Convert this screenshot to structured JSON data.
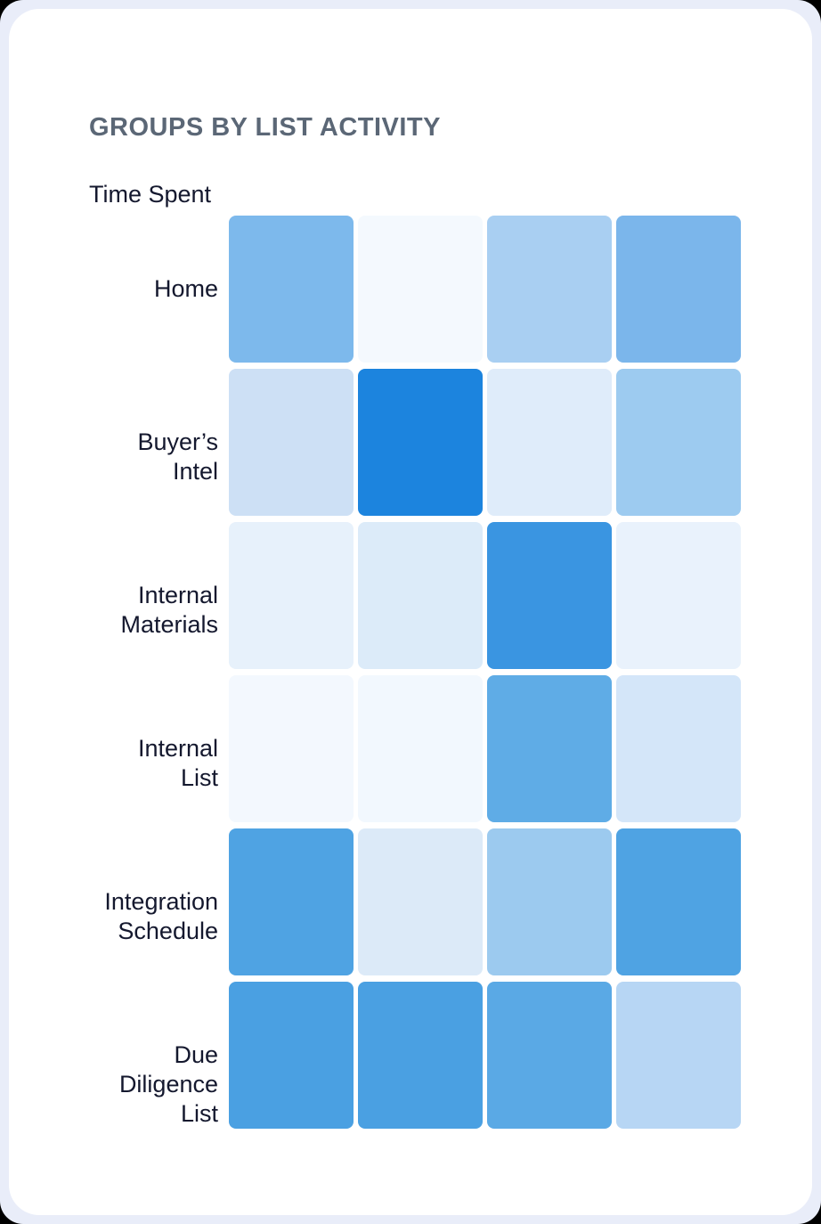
{
  "page": {
    "title": "GROUPS BY LIST ACTIVITY",
    "axis_header": "Time Spent"
  },
  "colors": {
    "frame_bg": "#e9edf9",
    "card_bg": "#ffffff",
    "title_color": "#5b6776",
    "label_color": "#14182e",
    "scale_min": "#f3f8fe",
    "scale_max": "#1c84de"
  },
  "chart_data": {
    "type": "heatmap",
    "title": "GROUPS BY LIST ACTIVITY",
    "ylabel": "Time Spent",
    "rows": [
      "Home",
      "Buyer’s Intel",
      "Internal Materials",
      "Internal List",
      "Integration Schedule",
      "Due Diligence List"
    ],
    "row_lines": [
      [
        "Home"
      ],
      [
        "Buyer’s",
        "Intel"
      ],
      [
        "Internal",
        "Materials"
      ],
      [
        "Internal",
        "List"
      ],
      [
        "Integration",
        "Schedule"
      ],
      [
        "Due",
        "Diligence",
        "List"
      ]
    ],
    "columns": [
      "",
      "",
      "",
      ""
    ],
    "column_count": 4,
    "legend": "none",
    "cell_values_shown": false,
    "intensity_0_to_1": [
      [
        0.55,
        0.03,
        0.38,
        0.56
      ],
      [
        0.22,
        1.0,
        0.14,
        0.43
      ],
      [
        0.1,
        0.15,
        0.85,
        0.09
      ],
      [
        0.04,
        0.04,
        0.68,
        0.19
      ],
      [
        0.75,
        0.15,
        0.43,
        0.75
      ],
      [
        0.78,
        0.78,
        0.7,
        0.32
      ]
    ],
    "cell_colors": [
      [
        "#7db9ec",
        "#f4f9fe",
        "#a9cff2",
        "#7bb6eb"
      ],
      [
        "#cde0f5",
        "#1c84de",
        "#dfecfa",
        "#9dcbf0"
      ],
      [
        "#e7f1fb",
        "#dcebf9",
        "#3a95e1",
        "#e9f2fc"
      ],
      [
        "#f3f8fe",
        "#f2f8fe",
        "#5face6",
        "#d4e6f9"
      ],
      [
        "#4fa3e3",
        "#dceaf8",
        "#9ccaef",
        "#4fa3e3"
      ],
      [
        "#4aa0e2",
        "#4aa0e2",
        "#5aa9e5",
        "#b7d6f4"
      ]
    ]
  }
}
